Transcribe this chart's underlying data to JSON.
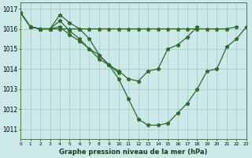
{
  "title": "Graphe pression niveau de la mer (hPa)",
  "bg_color": "#cce8e8",
  "grid_color": "#a8cccc",
  "line_color": "#2d6b2d",
  "xlim": [
    0,
    23
  ],
  "ylim": [
    1010.5,
    1017.3
  ],
  "yticks": [
    1011,
    1012,
    1013,
    1014,
    1015,
    1016,
    1017
  ],
  "xticks": [
    0,
    1,
    2,
    3,
    4,
    5,
    6,
    7,
    8,
    9,
    10,
    11,
    12,
    13,
    14,
    15,
    16,
    17,
    18,
    19,
    20,
    21,
    22,
    23
  ],
  "lines_x": [
    [
      0,
      1,
      2,
      3,
      4,
      5,
      6,
      7,
      8,
      9,
      10,
      11,
      12,
      13,
      14,
      15,
      16,
      17,
      18,
      19,
      20,
      21,
      22
    ],
    [
      0,
      1,
      2,
      3,
      4,
      5,
      6,
      7,
      8,
      9,
      10,
      11,
      12,
      13,
      14,
      15,
      16,
      17,
      18,
      19,
      20,
      21,
      22,
      23
    ],
    [
      0,
      1,
      2,
      3,
      4,
      5,
      6,
      7,
      8,
      9,
      10
    ],
    [
      0,
      1,
      2,
      3,
      4,
      5,
      6,
      7,
      8,
      9,
      10,
      11,
      12,
      13,
      14,
      15,
      16,
      17,
      18
    ]
  ],
  "lines_y": [
    [
      1016.8,
      1016.1,
      1016.0,
      1016.0,
      1016.0,
      1016.0,
      1016.0,
      1016.0,
      1016.0,
      1016.0,
      1016.0,
      1016.0,
      1016.0,
      1016.0,
      1016.0,
      1016.0,
      1016.0,
      1016.0,
      1016.0,
      1016.0,
      1016.0,
      1016.0,
      1016.1
    ],
    [
      1016.8,
      1016.1,
      1016.0,
      1016.0,
      1016.7,
      1016.3,
      1016.0,
      1015.5,
      1014.7,
      1014.2,
      1013.5,
      1012.5,
      1011.5,
      1011.2,
      1011.2,
      1011.3,
      1011.8,
      1012.3,
      1013.0,
      1013.9,
      1014.0,
      1015.1,
      1015.5,
      1016.1
    ],
    [
      1016.8,
      1016.1,
      1016.0,
      1016.0,
      1016.4,
      1015.9,
      1015.5,
      1015.0,
      1014.5,
      1014.2,
      1013.8
    ],
    [
      1016.8,
      1016.1,
      1016.0,
      1016.0,
      1016.1,
      1015.7,
      1015.4,
      1015.0,
      1014.7,
      1014.2,
      1013.9,
      1013.5,
      1013.4,
      1013.9,
      1014.0,
      1015.0,
      1015.2,
      1015.6,
      1016.1
    ]
  ]
}
